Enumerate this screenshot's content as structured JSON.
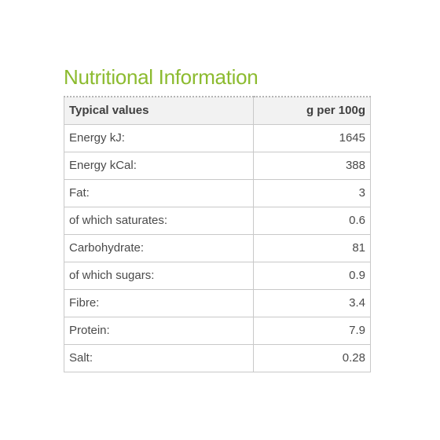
{
  "title": "Nutritional Information",
  "table": {
    "headers": {
      "label": "Typical values",
      "value": "g per 100g"
    },
    "rows": [
      {
        "label": "Energy kJ:",
        "value": "1645"
      },
      {
        "label": "Energy kCal:",
        "value": "388"
      },
      {
        "label": "Fat:",
        "value": "3"
      },
      {
        "label": "of which saturates:",
        "value": "0.6"
      },
      {
        "label": "Carbohydrate:",
        "value": "81"
      },
      {
        "label": "of which sugars:",
        "value": "0.9"
      },
      {
        "label": "Fibre:",
        "value": "3.4"
      },
      {
        "label": "Protein:",
        "value": "7.9"
      },
      {
        "label": "Salt:",
        "value": "0.28"
      }
    ]
  },
  "colors": {
    "title": "#8cbb2f",
    "border": "#c9c9c9",
    "header_bg": "#f2f2f2",
    "text": "#4a4a4a"
  }
}
